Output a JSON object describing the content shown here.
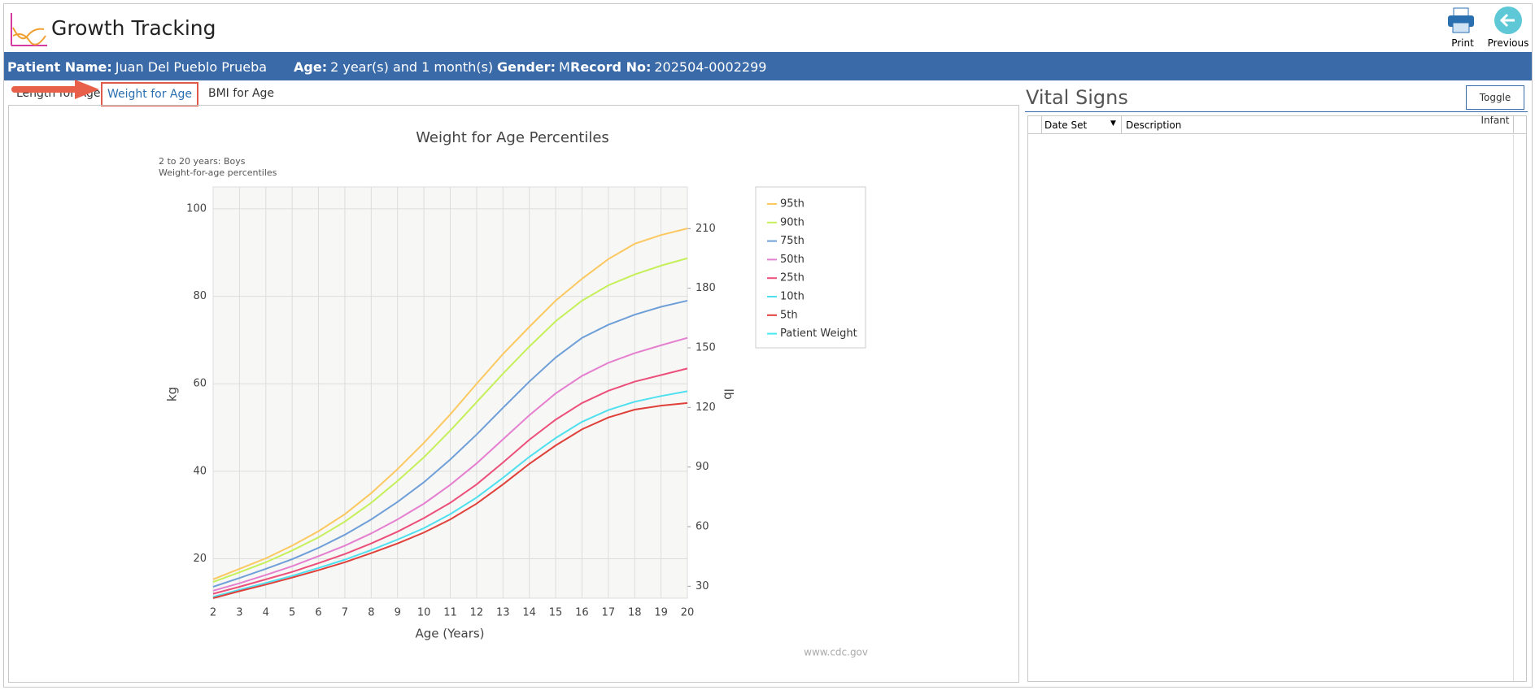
{
  "header": {
    "title": "Growth Tracking",
    "buttons": [
      "Print",
      "Previous"
    ]
  },
  "patient": [
    {
      "label": "Patient Name:",
      "value": "Juan Del Pueblo Prueba"
    },
    {
      "label": "Age:",
      "value": "2 year(s) and 1 month(s)"
    },
    {
      "label": "Gender:",
      "value": "M"
    },
    {
      "label": "Record No:",
      "value": "202504-0002299"
    }
  ],
  "tabs": [
    "Length for Age",
    "Weight for Age",
    "BMI for Age"
  ],
  "chart_data": {
    "type": "line",
    "title": "Weight for Age Percentiles",
    "subtitle": [
      "2 to 20 years: Boys",
      "Weight-for-age percentiles"
    ],
    "xlabel": "Age (Years)",
    "ylabel": "kg",
    "y2label": "lb",
    "source": "www.cdc.gov",
    "x": [
      2,
      3,
      4,
      5,
      6,
      7,
      8,
      9,
      10,
      11,
      12,
      13,
      14,
      15,
      16,
      17,
      18,
      19,
      20
    ],
    "xlim": [
      2,
      20
    ],
    "xticks": [
      2,
      3,
      4,
      5,
      6,
      7,
      8,
      9,
      10,
      11,
      12,
      13,
      14,
      15,
      16,
      17,
      18,
      19,
      20
    ],
    "ylim": [
      11,
      105
    ],
    "yticks": [
      20,
      40,
      60,
      80,
      100
    ],
    "y2lim": [
      24,
      231
    ],
    "y2ticks": [
      30,
      60,
      90,
      120,
      150,
      180,
      210
    ],
    "grid": true,
    "legend": "right",
    "series": [
      {
        "name": "95th",
        "color": "#fcc860",
        "values": [
          15.3,
          17.7,
          20.1,
          23.0,
          26.3,
          30.2,
          35,
          40.5,
          46.5,
          53,
          60,
          66.8,
          73,
          79,
          84,
          88.5,
          92,
          94,
          95.5
        ]
      },
      {
        "name": "90th",
        "color": "#c5f05a",
        "values": [
          14.7,
          16.9,
          19.2,
          21.9,
          24.9,
          28.5,
          32.8,
          37.8,
          43.2,
          49.3,
          55.8,
          62.3,
          68.5,
          74.3,
          79,
          82.5,
          85,
          87,
          88.7
        ]
      },
      {
        "name": "75th",
        "color": "#6f9fd8",
        "values": [
          13.6,
          15.6,
          17.7,
          19.9,
          22.5,
          25.5,
          29,
          33,
          37.5,
          42.7,
          48.4,
          54.5,
          60.5,
          66,
          70.5,
          73.5,
          75.8,
          77.6,
          79
        ]
      },
      {
        "name": "50th",
        "color": "#e57fcf",
        "values": [
          12.7,
          14.4,
          16.3,
          18.3,
          20.6,
          23,
          25.8,
          29,
          32.6,
          36.9,
          41.8,
          47.3,
          52.8,
          57.8,
          61.8,
          64.8,
          67,
          68.8,
          70.5
        ]
      },
      {
        "name": "25th",
        "color": "#ec4f7a",
        "values": [
          12,
          13.6,
          15.3,
          17,
          19,
          21.1,
          23.5,
          26.2,
          29.3,
          32.8,
          37,
          42,
          47.2,
          51.8,
          55.6,
          58.4,
          60.5,
          62,
          63.5
        ]
      },
      {
        "name": "10th",
        "color": "#4fe0ef",
        "values": [
          11.3,
          12.9,
          14.5,
          16.1,
          17.9,
          19.8,
          22,
          24.4,
          27,
          30.2,
          34,
          38.5,
          43.3,
          47.6,
          51.3,
          54,
          55.9,
          57.2,
          58.3
        ]
      },
      {
        "name": "5th",
        "color": "#e0403a",
        "values": [
          11,
          12.6,
          14.1,
          15.7,
          17.4,
          19.2,
          21.3,
          23.5,
          26,
          29,
          32.6,
          37,
          41.7,
          45.9,
          49.6,
          52.3,
          54.1,
          55,
          55.6
        ]
      },
      {
        "name": "Patient Weight",
        "color": "#45eaf2",
        "values": [
          null,
          null,
          null,
          null,
          null,
          null,
          null,
          null,
          null,
          null,
          null,
          null,
          null,
          null,
          null,
          null,
          null,
          null,
          null
        ]
      }
    ]
  },
  "vital_signs": {
    "title": "Vital Signs",
    "button": "Toggle Infant",
    "columns": [
      "Date Set",
      "Description"
    ]
  }
}
